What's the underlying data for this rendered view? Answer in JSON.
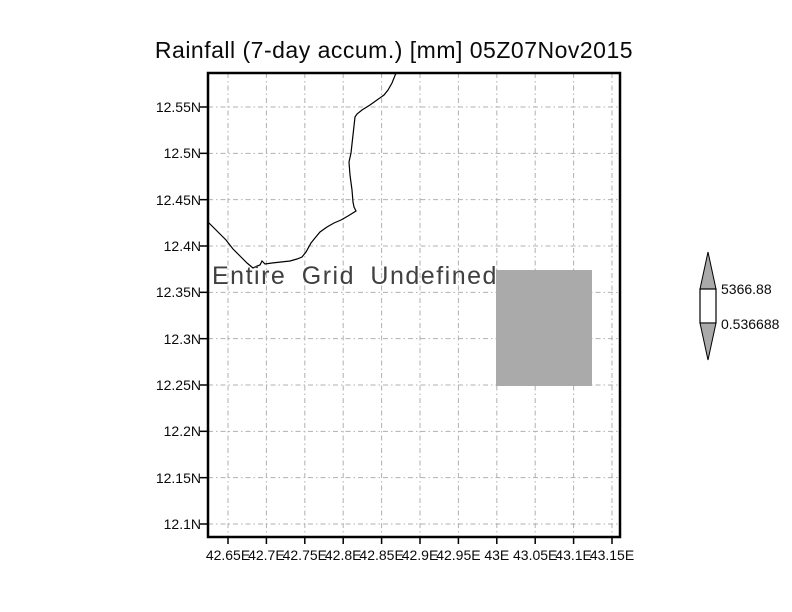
{
  "title": "Rainfall (7-day accum.) [mm] 05Z07Nov2015",
  "map": {
    "undefined_message": "Entire Grid Undefined",
    "lat_labels": [
      "12.55N",
      "12.5N",
      "12.45N",
      "12.4N",
      "12.35N",
      "12.3N",
      "12.25N",
      "12.2N",
      "12.15N",
      "12.1N"
    ],
    "lon_labels": [
      "42.65E",
      "42.7E",
      "42.75E",
      "42.8E",
      "42.85E",
      "42.9E",
      "42.95E",
      "43E",
      "43.05E",
      "43.1E",
      "43.15E"
    ]
  },
  "colorbar": {
    "upper_label": "5366.88",
    "lower_label": "0.536688",
    "arrow_fill_color": "#aaaaaa",
    "body_fill_color": "#ffffff"
  },
  "chart_data": {
    "type": "heatmap",
    "title": "Rainfall (7-day accum.) [mm] 05Z07Nov2015",
    "variable": "Rainfall (7-day accum.)",
    "units": "mm",
    "valid_time": "05Z07Nov2015",
    "x_ticks": [
      42.65,
      42.7,
      42.75,
      42.8,
      42.85,
      42.9,
      42.95,
      43.0,
      43.05,
      43.1,
      43.15
    ],
    "y_ticks": [
      12.1,
      12.15,
      12.2,
      12.25,
      12.3,
      12.35,
      12.4,
      12.45,
      12.5,
      12.55
    ],
    "xlim": [
      42.625,
      43.16
    ],
    "ylim": [
      12.085,
      12.59
    ],
    "xlabel": "",
    "ylabel": "",
    "grid": true,
    "annotation": "Entire Grid Undefined",
    "values": [],
    "colorbar": {
      "min": 0.536688,
      "max": 5366.88,
      "position": "right"
    },
    "shaded_cell": {
      "lon_range": [
        43.0,
        43.125
      ],
      "lat_range": [
        12.25,
        12.375
      ],
      "color": "#aaaaaa"
    },
    "coastline_shown": true
  }
}
